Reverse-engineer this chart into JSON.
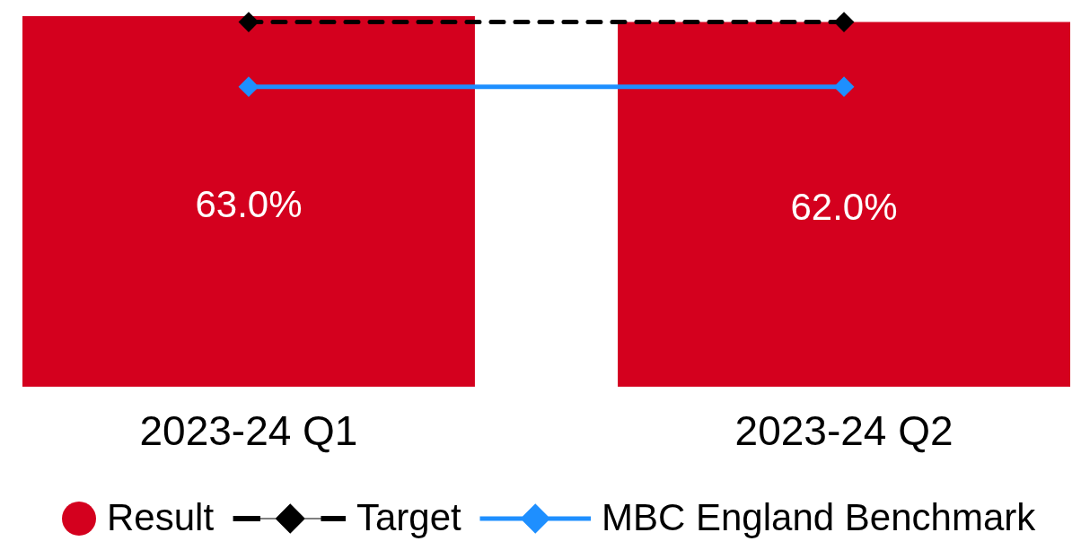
{
  "chart_data": {
    "type": "bar",
    "categories": [
      "2023-24 Q1",
      "2023-24 Q2"
    ],
    "series": [
      {
        "name": "Result",
        "color": "#d4001e",
        "values": [
          63.0,
          62.0
        ],
        "value_labels": [
          "63.0%",
          "62.0%"
        ]
      },
      {
        "name": "Target",
        "type": "line",
        "color": "#000000",
        "line_style": "dashed",
        "marker": "diamond",
        "values": [
          62,
          62
        ]
      },
      {
        "name": "MBC England Benchmark",
        "type": "line",
        "color": "#1e8fff",
        "line_style": "solid",
        "marker": "diamond",
        "values": [
          51,
          51
        ]
      }
    ],
    "legend": "bottom",
    "tick_labels": "x"
  }
}
